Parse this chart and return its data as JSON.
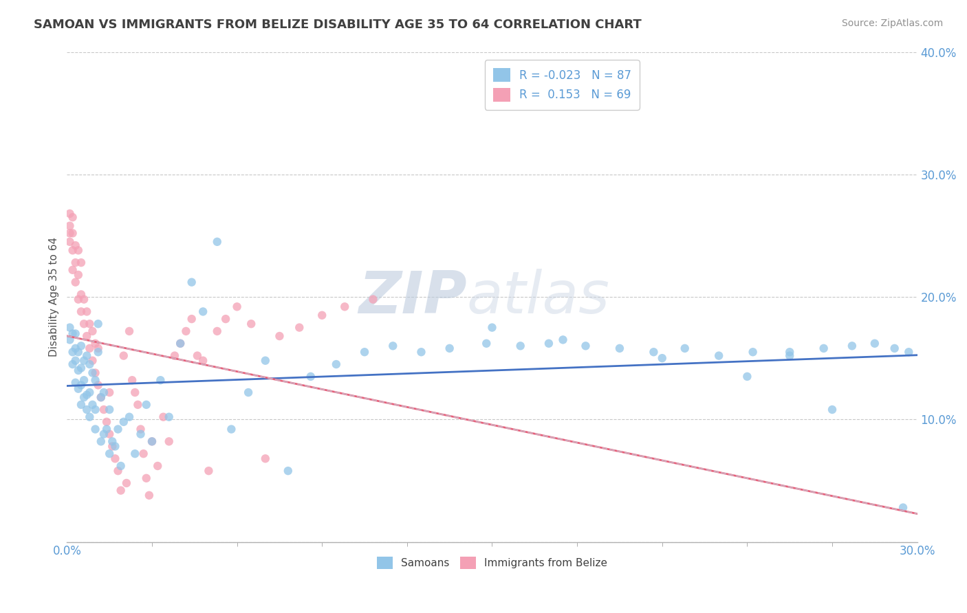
{
  "title": "SAMOAN VS IMMIGRANTS FROM BELIZE DISABILITY AGE 35 TO 64 CORRELATION CHART",
  "source_text": "Source: ZipAtlas.com",
  "ylabel": "Disability Age 35 to 64",
  "xlim": [
    0.0,
    0.3
  ],
  "ylim": [
    0.0,
    0.4
  ],
  "r1": "-0.023",
  "n1": "87",
  "r2": "0.153",
  "n2": "69",
  "series1_color": "#92C5E8",
  "series2_color": "#F4A0B5",
  "trend1_color": "#4472C4",
  "trend2_color": "#E8607A",
  "trend_dashed_color": "#C8C8D8",
  "watermark_color": "#CBD8EA",
  "background_color": "#FFFFFF",
  "grid_color": "#C8C8C8",
  "title_color": "#404040",
  "axis_label_color": "#5B9BD5",
  "samoans_x": [
    0.001,
    0.001,
    0.002,
    0.002,
    0.002,
    0.003,
    0.003,
    0.003,
    0.003,
    0.004,
    0.004,
    0.004,
    0.005,
    0.005,
    0.005,
    0.005,
    0.006,
    0.006,
    0.006,
    0.007,
    0.007,
    0.007,
    0.008,
    0.008,
    0.008,
    0.009,
    0.009,
    0.01,
    0.01,
    0.01,
    0.011,
    0.011,
    0.012,
    0.012,
    0.013,
    0.013,
    0.014,
    0.015,
    0.015,
    0.016,
    0.017,
    0.018,
    0.019,
    0.02,
    0.022,
    0.024,
    0.026,
    0.028,
    0.03,
    0.033,
    0.036,
    0.04,
    0.044,
    0.048,
    0.053,
    0.058,
    0.064,
    0.07,
    0.078,
    0.086,
    0.095,
    0.105,
    0.115,
    0.125,
    0.135,
    0.148,
    0.16,
    0.17,
    0.183,
    0.195,
    0.207,
    0.218,
    0.23,
    0.242,
    0.255,
    0.267,
    0.277,
    0.285,
    0.292,
    0.297,
    0.15,
    0.175,
    0.21,
    0.24,
    0.255,
    0.27,
    0.295
  ],
  "samoans_y": [
    0.165,
    0.175,
    0.145,
    0.155,
    0.17,
    0.13,
    0.148,
    0.158,
    0.17,
    0.125,
    0.14,
    0.155,
    0.112,
    0.128,
    0.142,
    0.16,
    0.118,
    0.132,
    0.148,
    0.108,
    0.12,
    0.152,
    0.102,
    0.122,
    0.145,
    0.112,
    0.138,
    0.092,
    0.108,
    0.132,
    0.155,
    0.178,
    0.082,
    0.118,
    0.088,
    0.122,
    0.092,
    0.072,
    0.108,
    0.082,
    0.078,
    0.092,
    0.062,
    0.098,
    0.102,
    0.072,
    0.088,
    0.112,
    0.082,
    0.132,
    0.102,
    0.162,
    0.212,
    0.188,
    0.245,
    0.092,
    0.122,
    0.148,
    0.058,
    0.135,
    0.145,
    0.155,
    0.16,
    0.155,
    0.158,
    0.162,
    0.16,
    0.162,
    0.16,
    0.158,
    0.155,
    0.158,
    0.152,
    0.155,
    0.155,
    0.158,
    0.16,
    0.162,
    0.158,
    0.155,
    0.175,
    0.165,
    0.15,
    0.135,
    0.152,
    0.108,
    0.028
  ],
  "belize_x": [
    0.001,
    0.001,
    0.001,
    0.001,
    0.002,
    0.002,
    0.002,
    0.002,
    0.003,
    0.003,
    0.003,
    0.004,
    0.004,
    0.004,
    0.005,
    0.005,
    0.005,
    0.006,
    0.006,
    0.007,
    0.007,
    0.008,
    0.008,
    0.009,
    0.009,
    0.01,
    0.01,
    0.011,
    0.011,
    0.012,
    0.013,
    0.014,
    0.015,
    0.015,
    0.016,
    0.017,
    0.018,
    0.019,
    0.02,
    0.021,
    0.022,
    0.023,
    0.024,
    0.025,
    0.026,
    0.027,
    0.028,
    0.029,
    0.03,
    0.032,
    0.034,
    0.036,
    0.038,
    0.04,
    0.042,
    0.044,
    0.046,
    0.048,
    0.05,
    0.053,
    0.056,
    0.06,
    0.065,
    0.07,
    0.075,
    0.082,
    0.09,
    0.098,
    0.108
  ],
  "belize_y": [
    0.245,
    0.258,
    0.268,
    0.252,
    0.222,
    0.238,
    0.252,
    0.265,
    0.212,
    0.228,
    0.242,
    0.198,
    0.218,
    0.238,
    0.188,
    0.202,
    0.228,
    0.178,
    0.198,
    0.168,
    0.188,
    0.158,
    0.178,
    0.148,
    0.172,
    0.138,
    0.162,
    0.128,
    0.158,
    0.118,
    0.108,
    0.098,
    0.088,
    0.122,
    0.078,
    0.068,
    0.058,
    0.042,
    0.152,
    0.048,
    0.172,
    0.132,
    0.122,
    0.112,
    0.092,
    0.072,
    0.052,
    0.038,
    0.082,
    0.062,
    0.102,
    0.082,
    0.152,
    0.162,
    0.172,
    0.182,
    0.152,
    0.148,
    0.058,
    0.172,
    0.182,
    0.192,
    0.178,
    0.068,
    0.168,
    0.175,
    0.185,
    0.192,
    0.198
  ]
}
